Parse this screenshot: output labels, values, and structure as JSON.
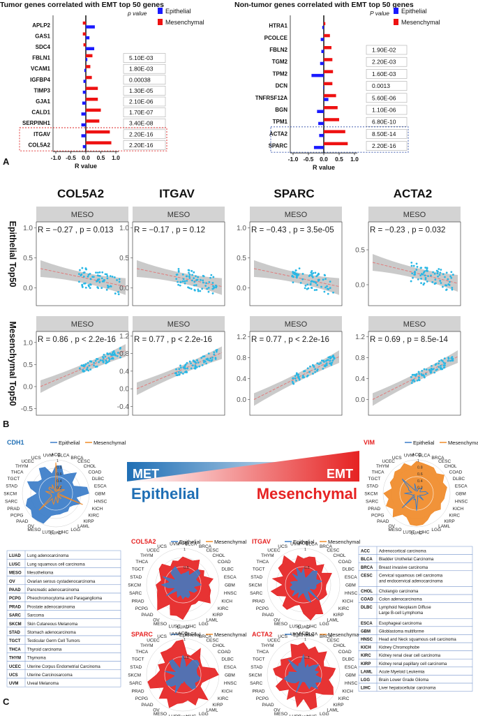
{
  "colors": {
    "epithelial": "#1a1aff",
    "mesenchymal": "#ee1111",
    "radar_blue": "#3a7cc8",
    "radar_orange": "#f08a28",
    "radar_red": "#e52222",
    "title_blue": "#1f6fb5",
    "title_red": "#e62222",
    "scatter_point": "#29b7e5",
    "fit_line": "#e07a7a",
    "strip_gray": "#d3d3d3"
  },
  "panel_labels": [
    "A",
    "B",
    "C"
  ],
  "chart_data": [
    {
      "type": "bar",
      "title": "Tumor genes correlated with EMT top 50 genes",
      "xlabel": "R value",
      "xlim": [
        -1.0,
        1.0
      ],
      "xticks": [
        "-1.0",
        "-0.5",
        "0.0",
        "0.5",
        "1.0"
      ],
      "pvalue_header": "p value",
      "legend": [
        "Epithelial",
        "Mesenchymal"
      ],
      "categories": [
        "APLP2",
        "GAS1",
        "SDC4",
        "FBLN1",
        "VCAM1",
        "IGFBP4",
        "TIMP3",
        "GJA1",
        "CALD1",
        "SERPINH1",
        "ITGAV",
        "COL5A2"
      ],
      "series": [
        {
          "name": "Epithelial",
          "values": [
            0.3,
            0.12,
            0.28,
            0.05,
            -0.05,
            -0.08,
            -0.1,
            -0.12,
            -0.15,
            -0.15,
            -0.15,
            -0.1
          ]
        },
        {
          "name": "Mesenchymal",
          "values": [
            -0.1,
            -0.1,
            -0.08,
            0.22,
            0.15,
            0.2,
            0.4,
            0.4,
            0.5,
            0.45,
            0.8,
            0.85
          ]
        }
      ],
      "pvalues": [
        "",
        "",
        "",
        "5.10E-03",
        "1.80E-03",
        "0.00038",
        "1.30E-05",
        "2.10E-06",
        "1.70E-07",
        "3.40E-08",
        "2.20E-16",
        "2.20E-16"
      ],
      "highlighted": [
        "ITGAV",
        "COL5A2"
      ]
    },
    {
      "type": "bar",
      "title": "Non-tumor genes correlated with EMT top 50 genes",
      "xlabel": "R value",
      "xlim": [
        -1.0,
        1.0
      ],
      "xticks": [
        "-1.0",
        "-0.5",
        "0.0",
        "0.5",
        "1.0"
      ],
      "pvalue_header": "P value",
      "legend": [
        "Epithelial",
        "Mesenchymal"
      ],
      "categories": [
        "HTRA1",
        "PCOLCE",
        "FBLN2",
        "TGM2",
        "TPM2",
        "DCN",
        "TNFRSF12A",
        "BGN",
        "TPM1",
        "ACTA2",
        "SPARC"
      ],
      "series": [
        {
          "name": "Epithelial",
          "values": [
            -0.05,
            -0.1,
            -0.08,
            -0.12,
            -0.4,
            -0.02,
            0.15,
            -0.22,
            -0.18,
            -0.15,
            -0.32
          ]
        },
        {
          "name": "Mesenchymal",
          "values": [
            0.05,
            0.2,
            0.25,
            0.28,
            0.3,
            0.28,
            0.4,
            0.45,
            0.5,
            0.7,
            0.78
          ]
        }
      ],
      "pvalues": [
        "",
        "",
        "1.90E-02",
        "2.20E-03",
        "1.60E-03",
        "0.0013",
        "5.60E-06",
        "1.10E-06",
        "6.80E-10",
        "8.50E-14",
        "2.20E-16"
      ],
      "highlighted": [
        "ACTA2",
        "SPARC"
      ]
    },
    {
      "type": "scatter",
      "strip_label": "MESO",
      "columns": [
        "COL5A2",
        "ITGAV",
        "SPARC",
        "ACTA2"
      ],
      "rows": [
        "Epithelial Top50",
        "Mesenchymal Top50"
      ],
      "panels": [
        {
          "row": 0,
          "col": 0,
          "stat": "R = −0.27 , p = 0.013",
          "yticks": [
            "0.0",
            "0.5",
            "1.0"
          ],
          "ylim": [
            -0.3,
            1.1
          ],
          "r": -0.27
        },
        {
          "row": 0,
          "col": 1,
          "stat": "R = −0.17 , p = 0.12",
          "yticks": [
            "0.0",
            "0.5",
            "1.0"
          ],
          "ylim": [
            -0.3,
            1.1
          ],
          "r": -0.17
        },
        {
          "row": 0,
          "col": 2,
          "stat": "R = −0.43 , p = 3.5e-05",
          "yticks": [
            "0.0",
            "0.5",
            "1.0"
          ],
          "ylim": [
            -0.3,
            1.1
          ],
          "r": -0.43
        },
        {
          "row": 0,
          "col": 3,
          "stat": "R = −0.23 , p = 0.032",
          "yticks": [
            "0.0",
            "0.5"
          ],
          "ylim": [
            -0.3,
            0.9
          ],
          "r": -0.23
        },
        {
          "row": 1,
          "col": 0,
          "stat": "R = 0.86 , p < 2.2e-16",
          "yticks": [
            "-0.5",
            "0.0",
            "0.5",
            "1.0"
          ],
          "ylim": [
            -0.65,
            1.25
          ],
          "r": 0.86
        },
        {
          "row": 1,
          "col": 1,
          "stat": "R = 0.77 , p < 2.2e-16",
          "yticks": [
            "-0.4",
            "0.0",
            "0.4",
            "0.8",
            "1.2"
          ],
          "ylim": [
            -0.6,
            1.3
          ],
          "r": 0.77
        },
        {
          "row": 1,
          "col": 2,
          "stat": "R = 0.77 , p < 2.2e-16",
          "yticks": [
            "0.0",
            "0.4",
            "0.8",
            "1.2"
          ],
          "ylim": [
            -0.3,
            1.3
          ],
          "r": 0.77
        },
        {
          "row": 1,
          "col": 3,
          "stat": "R = 0.69 , p = 8.5e-14",
          "yticks": [
            "0.0",
            "0.4",
            "0.8",
            "1.2"
          ],
          "ylim": [
            -0.3,
            1.3
          ],
          "r": 0.69
        }
      ]
    },
    {
      "type": "radar",
      "cancer_types": [
        "ACC",
        "BLCA",
        "BRCA",
        "CESC",
        "CHOL",
        "COAD",
        "DLBC",
        "ESCA",
        "GBM",
        "HNSC",
        "KICH",
        "KIRC",
        "KIRP",
        "LAML",
        "LGG",
        "LIHC",
        "LUAD",
        "LUSC",
        "MESO",
        "OV",
        "PAAD",
        "PCPG",
        "PRAD",
        "SARC",
        "SKCM",
        "STAD",
        "TGCT",
        "THCA",
        "THYM",
        "UCEC",
        "UCS",
        "UVM"
      ],
      "legend": [
        "Epithelial",
        "Mesenchymal"
      ],
      "charts": [
        {
          "gene": "CDH1",
          "fill": "blue",
          "ticks": [
            "1",
            "0.8",
            "0.6",
            "0.4",
            "0.2"
          ]
        },
        {
          "gene": "VIM",
          "fill": "orange",
          "ticks": [
            "1",
            "0.8",
            "0.6",
            "0.4",
            "0.2"
          ]
        },
        {
          "gene": "COL5A2",
          "fill": "red",
          "ticks": [
            "1",
            "0.5"
          ]
        },
        {
          "gene": "ITGAV",
          "fill": "red",
          "ticks": [
            "1",
            "0.5"
          ]
        },
        {
          "gene": "SPARC",
          "fill": "red",
          "ticks": [
            "1",
            "0.5"
          ]
        },
        {
          "gene": "ACTA2",
          "fill": "red",
          "ticks": [
            "1",
            "0.5"
          ]
        }
      ]
    }
  ],
  "banner": {
    "met": "MET",
    "emt": "EMT",
    "epithelial": "Epithelial",
    "mesenchymal": "Mesenchymal"
  },
  "abbrev_left": [
    [
      "LUAD",
      "Lung adenocarcinoma"
    ],
    [
      "LUSC",
      "Lung squamous cell carcinoma"
    ],
    [
      "MESO",
      "Mesothelioma"
    ],
    [
      "OV",
      "Ovarian serous cystadenocarcinoma"
    ],
    [
      "PAAD",
      "Pancreatic adenocarcinoma"
    ],
    [
      "PCPG",
      "Pheochromocytoma  and Paraganglioma"
    ],
    [
      "PRAD",
      "Prostate adenocarcinoma"
    ],
    [
      "SARC",
      "Sarcoma"
    ],
    [
      "SKCM",
      "Skin Cutaneous Melanoma"
    ],
    [
      "STAD",
      "Stomach adenocarcinoma"
    ],
    [
      "TGCT",
      "Testicular Germ Cell Tumors"
    ],
    [
      "THCA",
      "Thyroid carcinoma"
    ],
    [
      "THYM",
      "Thymoma"
    ],
    [
      "UCEC",
      "Uterine Corpus Endometrial Carcinoma"
    ],
    [
      "UCS",
      "Uterine Carcinosarcoma"
    ],
    [
      "UVM",
      "Uveal Melanoma"
    ]
  ],
  "abbrev_right": [
    [
      "ACC",
      "Adrenocortical carcinoma"
    ],
    [
      "BLCA",
      "Bladder Urothelial Carcinoma"
    ],
    [
      "BRCA",
      "Breast invasive carcinoma"
    ],
    [
      "CESC",
      "Cervical squamous cell carcinoma and endocervical adenocarcinoma"
    ],
    [
      "CHOL",
      "Cholangio carcinoma"
    ],
    [
      "COAD",
      "Colon adenocarcinoma"
    ],
    [
      "DLBC",
      "Lymphoid Neoplasm Diffuse Large B-cell Lymphoma"
    ],
    [
      "ESCA",
      "Esophageal carcinoma"
    ],
    [
      "GBM",
      "Glioblastoma multiforme"
    ],
    [
      "HNSC",
      "Head and Neck squamous cell carcinoma"
    ],
    [
      "KICH",
      "Kidney Chromophobe"
    ],
    [
      "KIRC",
      "Kidney renal clear cell carcinoma"
    ],
    [
      "KIRP",
      "Kidney renal papillary cell carcinoma"
    ],
    [
      "LAML",
      "Acute Myeloid Leukemia"
    ],
    [
      "LGG",
      "Brain Lower Grade Glioma"
    ],
    [
      "LIHC",
      "Liver hepatocellular carcinoma"
    ]
  ]
}
